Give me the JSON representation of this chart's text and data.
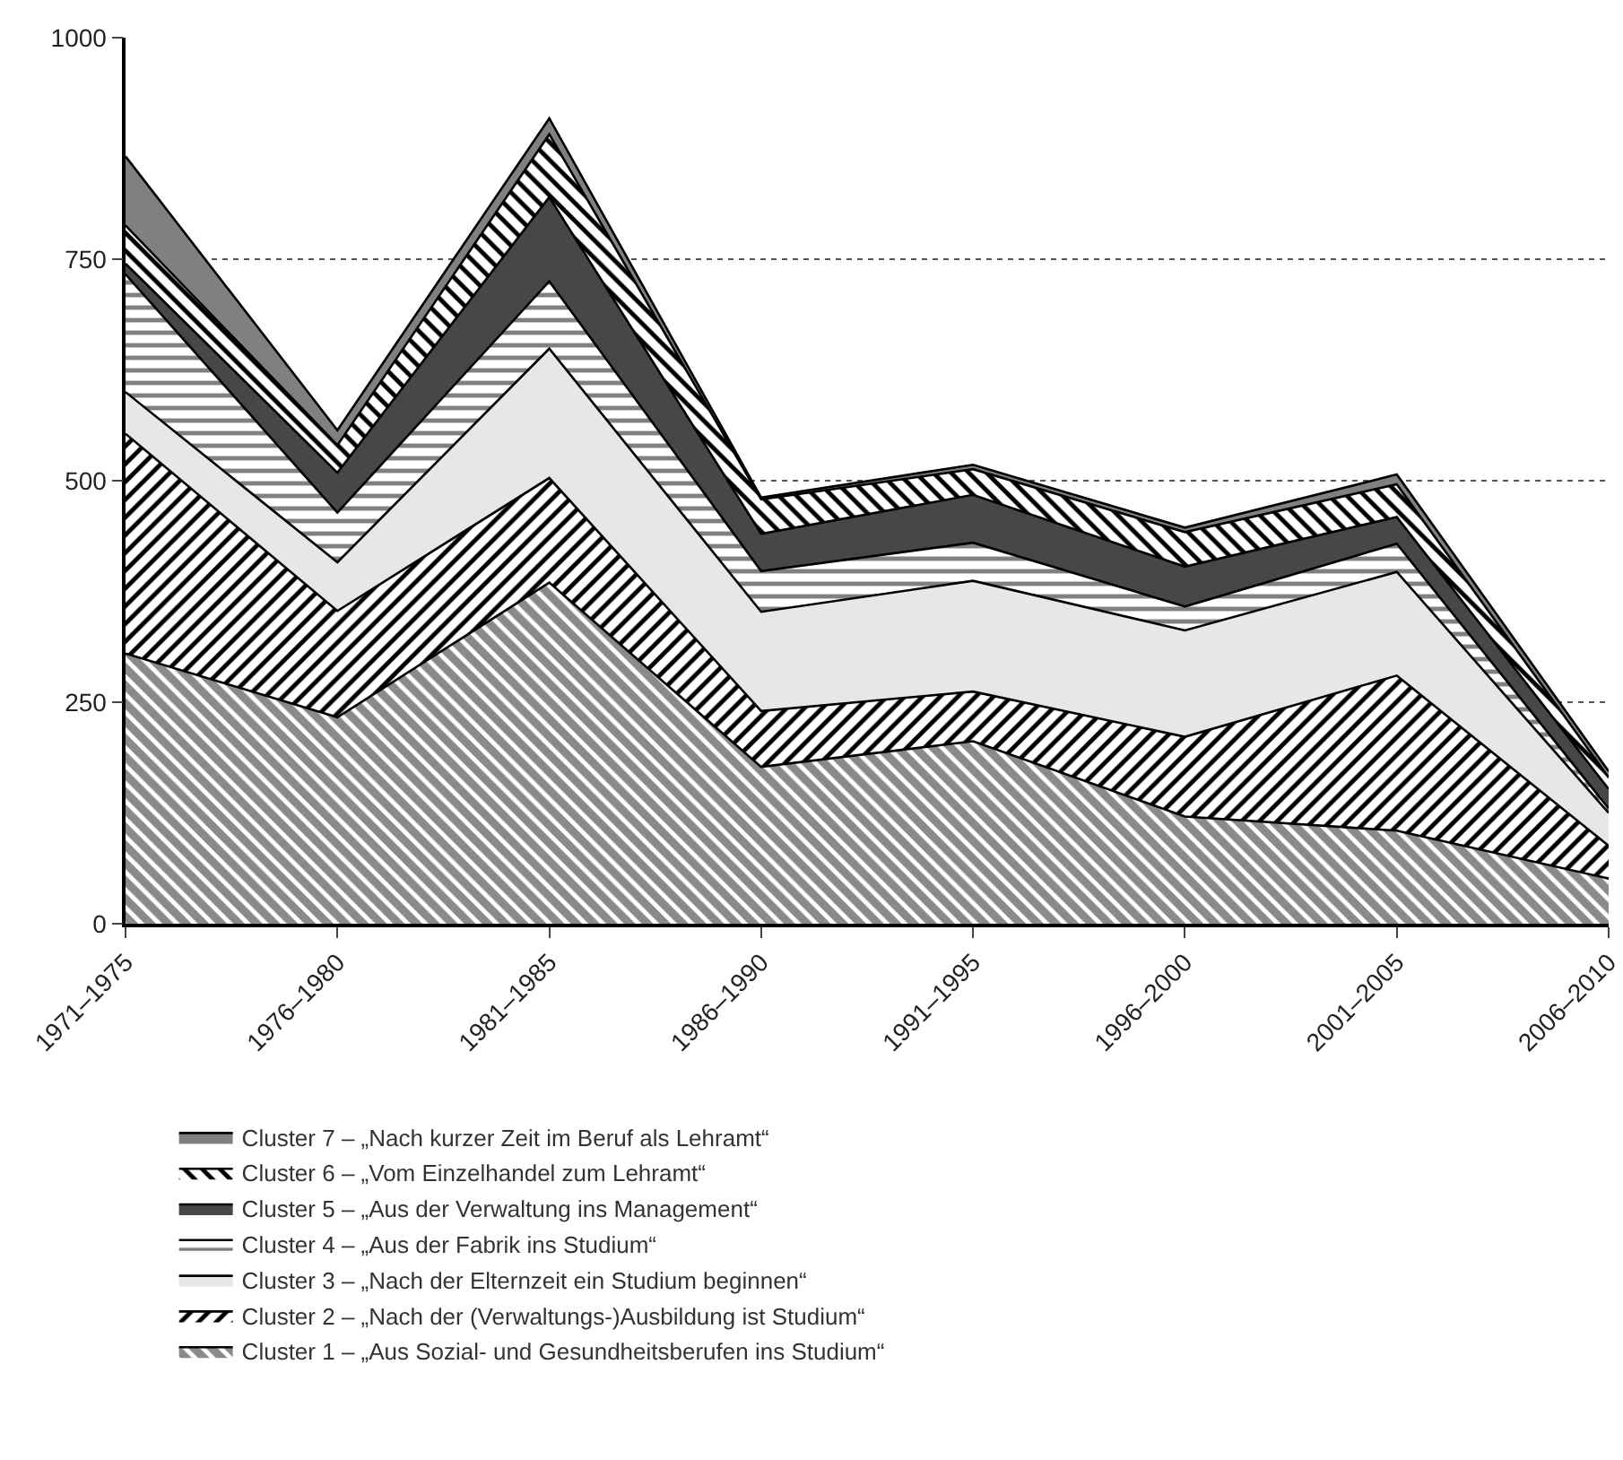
{
  "chart_data": {
    "type": "area",
    "stacked": true,
    "categories": [
      "1971–1975",
      "1976–1980",
      "1981–1985",
      "1986–1990",
      "1991–1995",
      "1996–2000",
      "2001–2005",
      "2006–2010"
    ],
    "series": [
      {
        "name": "Cluster 1 – „Aus Sozial- und Gesundheitsberufen ins Studium“",
        "color": "#8a8a8a",
        "values": [
          305,
          233,
          385,
          177,
          206,
          121,
          105,
          51
        ]
      },
      {
        "name": "Cluster 2 – „Nach der (Verwaltungs-)Ausbildung ist Studium“",
        "color": "#ffffff",
        "values": [
          248,
          120,
          118,
          63,
          56,
          90,
          175,
          37
        ]
      },
      {
        "name": "Cluster 3 – „Nach der Elternzeit ein Studium beginnen“",
        "color": "#e6e7e6",
        "values": [
          47,
          55,
          146,
          112,
          125,
          120,
          117,
          37
        ]
      },
      {
        "name": "Cluster 4 – „Aus der Fabrik ins Studium“",
        "color": "#ffffff",
        "values": [
          133,
          56,
          76,
          46,
          43,
          27,
          32,
          5
        ]
      },
      {
        "name": "Cluster 5 – „Aus der Verwaltung ins Management“",
        "color": "#474747",
        "values": [
          12,
          45,
          95,
          42,
          54,
          45,
          30,
          22
        ]
      },
      {
        "name": "Cluster 6 – „Vom Einzelhandel zum Lehramt“",
        "color": "#ffffff",
        "values": [
          43,
          31,
          71,
          39,
          29,
          39,
          37,
          13
        ]
      },
      {
        "name": "Cluster 7 – „Nach kurzer Zeit im Beruf als Lehramt“",
        "color": "#808080",
        "values": [
          78,
          17,
          18,
          2,
          5,
          5,
          11,
          7
        ]
      }
    ],
    "ylim": [
      0,
      1000
    ],
    "yticks": [
      0,
      250,
      500,
      750,
      1000
    ],
    "grid": "y",
    "legend": "bottom"
  }
}
